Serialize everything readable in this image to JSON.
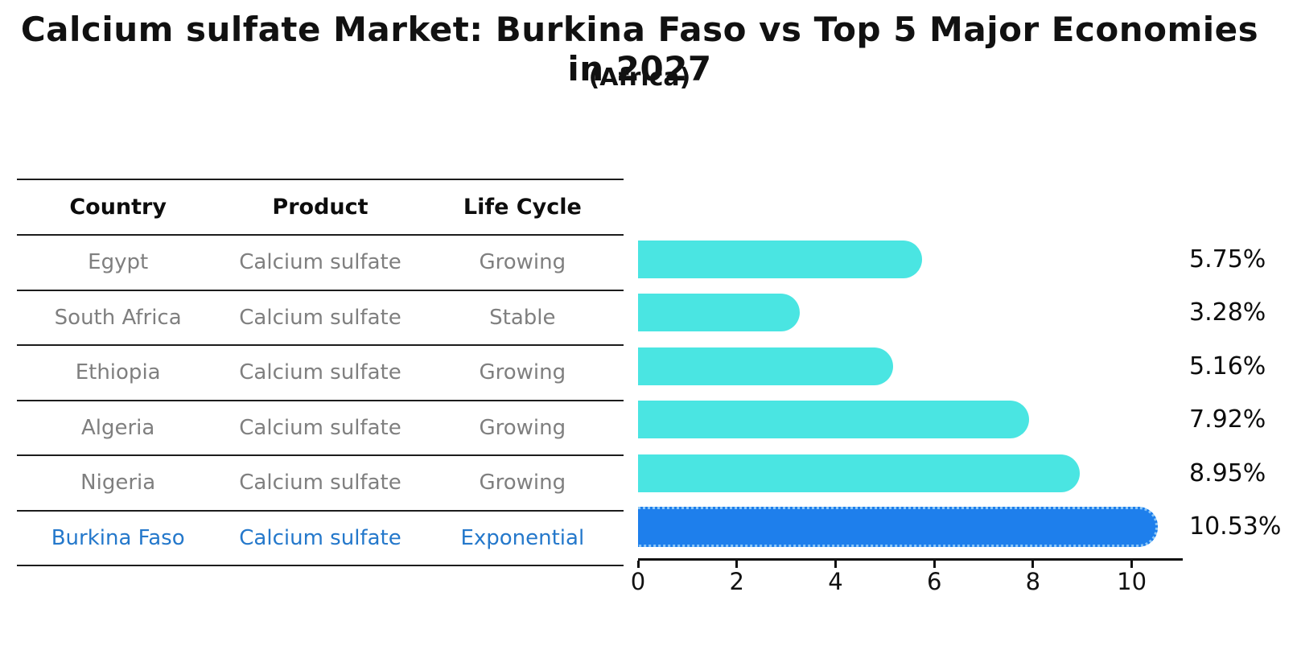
{
  "title": "Calcium sulfate Market: Burkina Faso vs Top 5 Major Economies in 2027",
  "subtitle": "(Africa)",
  "table": {
    "headers": [
      "Country",
      "Product",
      "Life Cycle"
    ],
    "rows": [
      {
        "country": "Egypt",
        "product": "Calcium sulfate",
        "life_cycle": "Growing"
      },
      {
        "country": "South Africa",
        "product": "Calcium sulfate",
        "life_cycle": "Stable"
      },
      {
        "country": "Ethiopia",
        "product": "Calcium sulfate",
        "life_cycle": "Growing"
      },
      {
        "country": "Algeria",
        "product": "Calcium sulfate",
        "life_cycle": "Growing"
      },
      {
        "country": "Nigeria",
        "product": "Calcium sulfate",
        "life_cycle": "Growing"
      },
      {
        "country": "Burkina Faso",
        "product": "Calcium sulfate",
        "life_cycle": "Exponential"
      }
    ]
  },
  "chart_data": {
    "type": "bar",
    "orientation": "horizontal",
    "categories": [
      "Egypt",
      "South Africa",
      "Ethiopia",
      "Algeria",
      "Nigeria",
      "Burkina Faso"
    ],
    "values": [
      5.75,
      3.28,
      5.16,
      7.92,
      8.95,
      10.53
    ],
    "value_labels": [
      "5.75%",
      "3.28%",
      "5.16%",
      "7.92%",
      "8.95%",
      "10.53%"
    ],
    "highlight_index": 5,
    "xlim": [
      0,
      11
    ],
    "xticks": [
      0,
      2,
      4,
      6,
      8,
      10
    ],
    "grid": false,
    "legend": "none",
    "colors": {
      "default_bar": "#4ae5e2",
      "highlight_bar": "#1e7fec",
      "highlight_bar_border": "#8cc7f7",
      "highlight_text": "#2478cb",
      "table_body_text": "#7f7f7f",
      "heading_text": "#111111"
    }
  }
}
